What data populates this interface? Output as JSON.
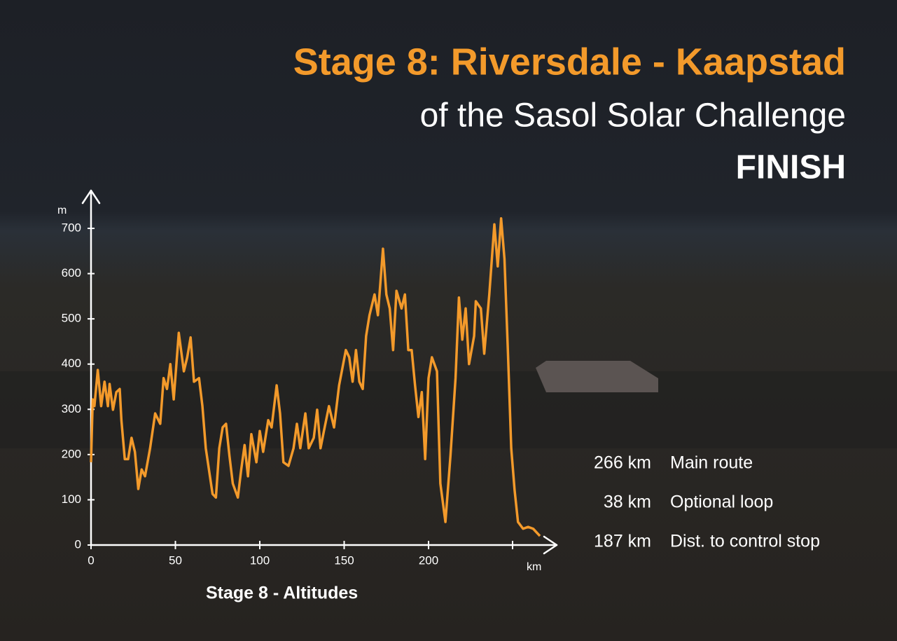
{
  "chart_data": {
    "type": "line",
    "title": "Stage 8: Riversdale - Kaapstad",
    "subtitle": "of the Sasol Solar Challenge",
    "status": "FINISH",
    "caption": "Stage 8 - Altitudes",
    "x_label": "km",
    "y_label": "m",
    "xlim": [
      0,
      275
    ],
    "ylim": [
      0,
      780
    ],
    "xticks": [
      0,
      50,
      100,
      150,
      200
    ],
    "yticks": [
      0,
      100,
      200,
      300,
      400,
      500,
      600,
      700
    ],
    "grid": false,
    "series": [
      {
        "name": "Altitude",
        "color": "#f39a2b",
        "x": [
          0,
          1,
          2,
          4,
          6,
          8,
          10,
          11,
          13,
          15,
          17,
          18,
          20,
          22,
          24,
          26,
          28,
          30,
          32,
          35,
          38,
          41,
          43,
          45,
          47,
          49,
          52,
          55,
          57,
          59,
          61,
          64,
          66,
          68,
          72,
          74,
          76,
          78,
          80,
          82,
          84,
          87,
          89,
          91,
          93,
          95,
          98,
          100,
          102,
          105,
          107,
          110,
          112,
          114,
          117,
          120,
          122,
          124,
          127,
          129,
          132,
          134,
          136,
          138,
          141,
          144,
          147,
          151,
          153,
          155,
          157,
          159,
          161,
          163,
          165,
          168,
          170,
          173,
          175,
          177,
          179,
          181,
          184,
          186,
          188,
          190,
          192,
          194,
          196,
          198,
          200,
          202,
          205,
          207,
          210,
          213,
          216,
          218,
          220,
          222,
          224,
          227,
          228,
          231,
          233,
          236,
          239,
          241,
          243,
          245,
          247,
          249,
          251,
          253,
          256,
          259,
          262,
          266
        ],
        "values": [
          183,
          322,
          307,
          387,
          307,
          361,
          307,
          356,
          299,
          338,
          345,
          276,
          190,
          190,
          237,
          206,
          124,
          167,
          152,
          214,
          291,
          268,
          369,
          345,
          400,
          322,
          469,
          384,
          415,
          459,
          361,
          369,
          307,
          214,
          113,
          105,
          214,
          260,
          268,
          198,
          136,
          105,
          167,
          221,
          152,
          245,
          183,
          252,
          206,
          276,
          260,
          353,
          291,
          183,
          175,
          214,
          268,
          214,
          291,
          214,
          237,
          299,
          214,
          252,
          307,
          260,
          353,
          431,
          415,
          361,
          431,
          361,
          345,
          462,
          508,
          554,
          508,
          655,
          554,
          523,
          431,
          562,
          523,
          554,
          431,
          431,
          353,
          283,
          338,
          190,
          369,
          415,
          384,
          136,
          51,
          198,
          369,
          547,
          454,
          523,
          400,
          462,
          539,
          523,
          423,
          554,
          709,
          616,
          722,
          632,
          431,
          214,
          121,
          51,
          36,
          40,
          36,
          20
        ]
      }
    ],
    "stats": [
      {
        "amount": "266 km",
        "label": "Main route"
      },
      {
        "amount": "38 km",
        "label": "Optional loop"
      },
      {
        "amount": "187 km",
        "label": "Dist. to control stop"
      }
    ]
  }
}
